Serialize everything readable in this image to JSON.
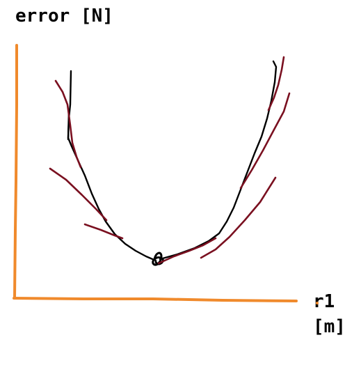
{
  "axes": {
    "y_label": "error [N]",
    "x_label_line1": "r1",
    "x_label_line2": "[m]"
  },
  "colors": {
    "axis": "#f08a2c",
    "curve": "#000000",
    "tangent": "#7a1020"
  }
}
